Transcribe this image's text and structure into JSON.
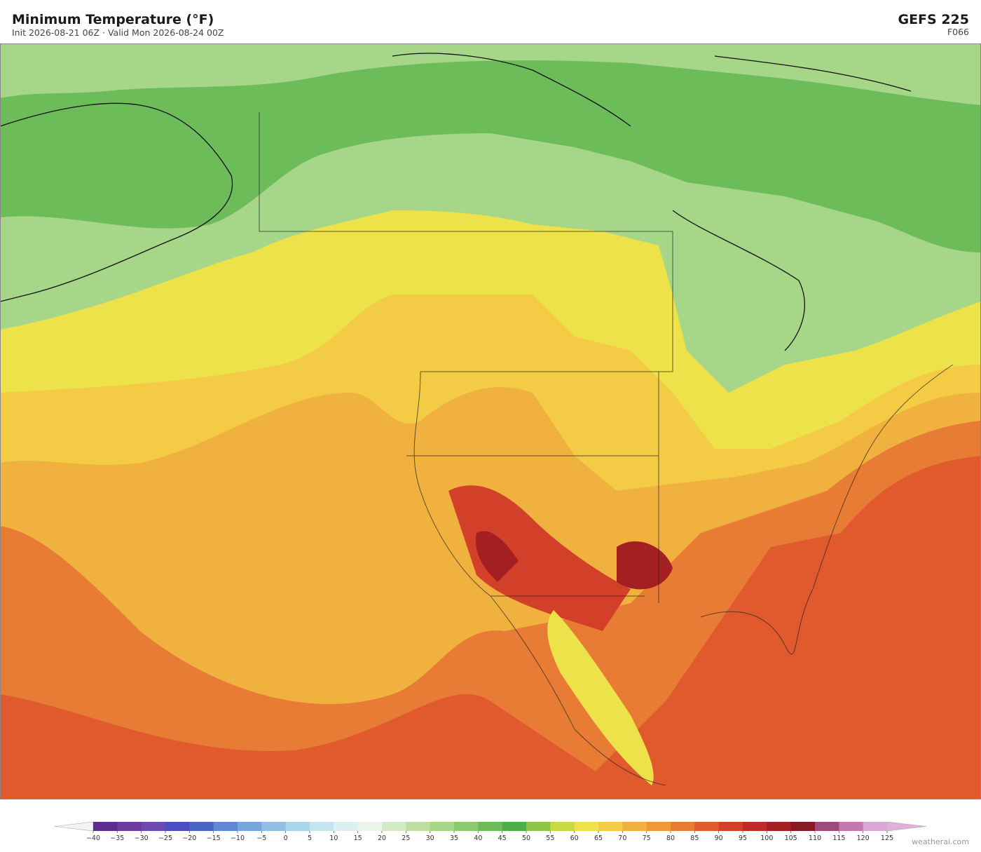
{
  "header": {
    "title": "Minimum Temperature  (°F)",
    "subtitle": "Init 2026-08-21 06Z   ·   Valid Mon 2026-08-24 00Z",
    "model": "GEFS  225",
    "forecast_hour": "F066"
  },
  "colorbar": {
    "ticks": [
      {
        "value": -40,
        "label": "−40"
      },
      {
        "value": -35,
        "label": "−35"
      },
      {
        "value": -30,
        "label": "−30"
      },
      {
        "value": -25,
        "label": "−25"
      },
      {
        "value": -20,
        "label": "−20"
      },
      {
        "value": -15,
        "label": "−15"
      },
      {
        "value": -10,
        "label": "−10"
      },
      {
        "value": -5,
        "label": "−5"
      },
      0,
      5,
      10,
      15,
      20,
      25,
      30,
      35,
      40,
      45,
      50,
      55,
      60,
      65,
      70,
      75,
      80,
      85,
      90,
      95,
      100,
      105,
      110,
      115,
      120,
      125
    ],
    "colors": [
      "#5a2d8f",
      "#6c3b9e",
      "#6e4ab0",
      "#4a4ec0",
      "#4a64c8",
      "#5e88d0",
      "#76a6da",
      "#8fc0e4",
      "#a8d4ec",
      "#c4e4f0",
      "#dcf0f4",
      "#e8f5e8",
      "#d2ebc6",
      "#bde0a0",
      "#a6d688",
      "#8bcb6f",
      "#6cbd5a",
      "#4caf48",
      "#8ec445",
      "#c9d943",
      "#ede24a",
      "#f3cb45",
      "#f0b13f",
      "#ee983a",
      "#e97c35",
      "#e05b2e",
      "#d3402a",
      "#be2b26",
      "#a41f22",
      "#871a22",
      "#9e4a7e",
      "#c478b0",
      "#dba8d6"
    ],
    "under_color": "#f4f4f4",
    "over_color": "#e0b0dc"
  },
  "watermark": "weatherai.com"
}
